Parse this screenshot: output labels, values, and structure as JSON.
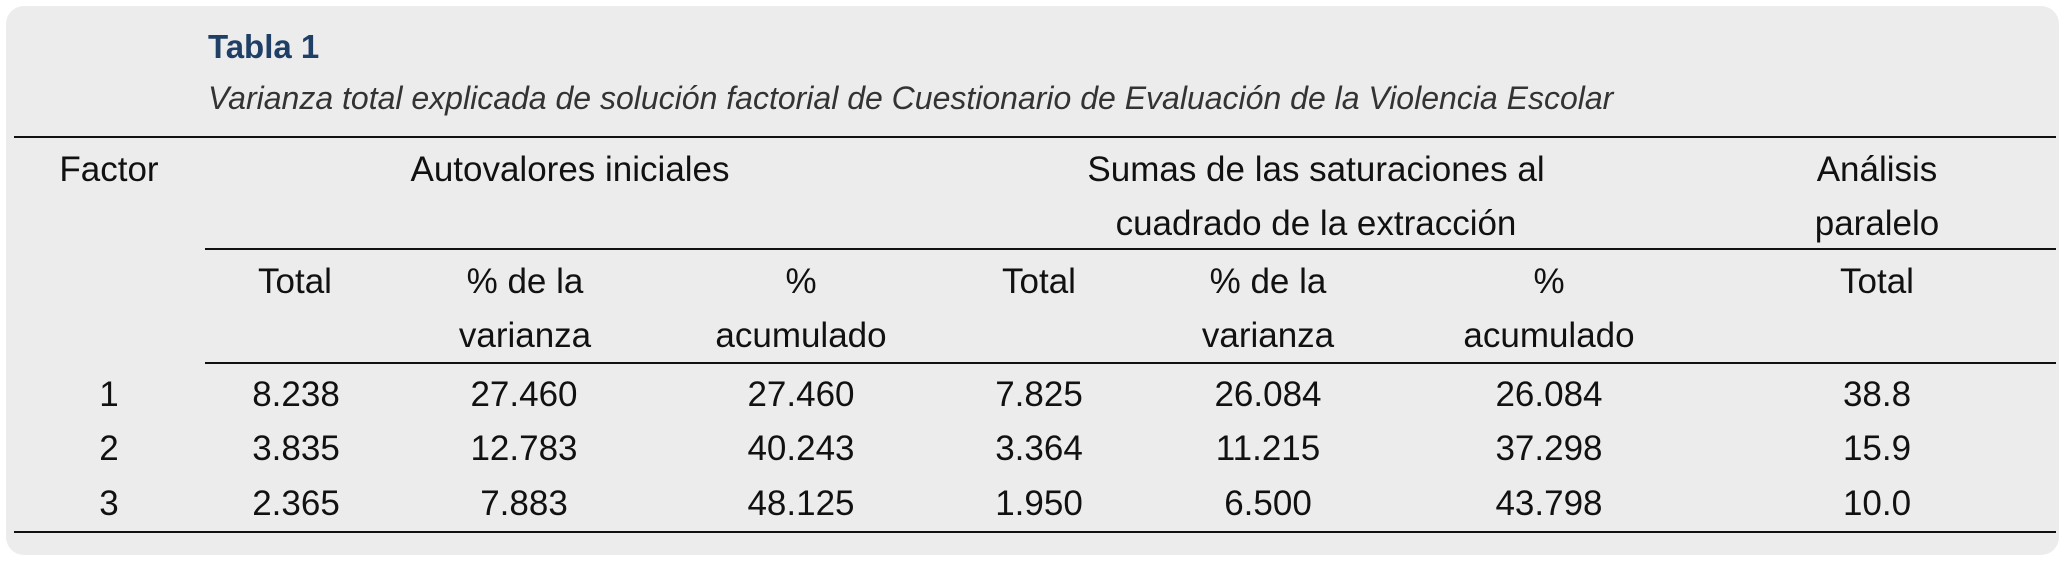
{
  "table": {
    "title": "Tabla 1",
    "subtitle": "Varianza total explicada de solución factorial de Cuestionario de Evaluación de la Violencia Escolar",
    "group_headers": {
      "factor": "Factor",
      "initial": "Autovalores iniciales",
      "extraction_line1": "Sumas de las saturaciones al",
      "extraction_line2": "cuadrado de la extracción",
      "parallel_line1": "Análisis",
      "parallel_line2": "paralelo"
    },
    "columns": {
      "c1": "Total",
      "c2_line1": "% de la",
      "c2_line2": "varianza",
      "c3_line1": "%",
      "c3_line2": "acumulado",
      "c4": "Total",
      "c5_line1": "% de la",
      "c5_line2": "varianza",
      "c6_line1": "%",
      "c6_line2": "acumulado",
      "c7": "Total"
    },
    "rows": [
      [
        "1",
        "8.238",
        "27.460",
        "27.460",
        "7.825",
        "26.084",
        "26.084",
        "38.8"
      ],
      [
        "2",
        "3.835",
        "12.783",
        "40.243",
        "3.364",
        "11.215",
        "37.298",
        "15.9"
      ],
      [
        "3",
        "2.365",
        "7.883",
        "48.125",
        "1.950",
        "6.500",
        "43.798",
        "10.0"
      ]
    ]
  }
}
